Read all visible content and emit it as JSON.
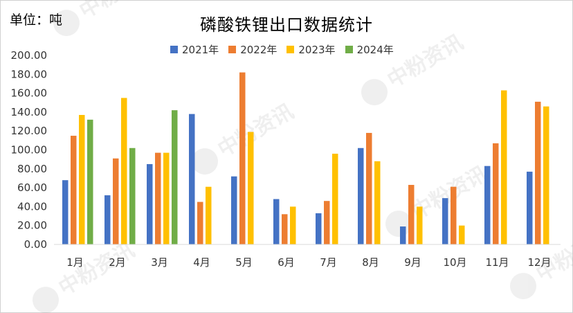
{
  "unit_label": "单位：吨",
  "watermark": "中粉资讯",
  "chart_data": {
    "type": "bar",
    "title": "磷酸铁锂出口数据统计",
    "categories": [
      "1月",
      "2月",
      "3月",
      "4月",
      "5月",
      "6月",
      "7月",
      "8月",
      "9月",
      "10月",
      "11月",
      "12月"
    ],
    "ylim": [
      0,
      200
    ],
    "yticks": [
      "0.00",
      "20.00",
      "40.00",
      "60.00",
      "80.00",
      "100.00",
      "120.00",
      "140.00",
      "160.00",
      "180.00",
      "200.00"
    ],
    "legend_position": "top",
    "grid": false,
    "series": [
      {
        "name": "2021年",
        "color": "#4472c4",
        "values": [
          68,
          52,
          85,
          138,
          72,
          48,
          33,
          102,
          19,
          49,
          83,
          77
        ]
      },
      {
        "name": "2022年",
        "color": "#ed7d31",
        "values": [
          115,
          91,
          97,
          45,
          182,
          32,
          46,
          118,
          63,
          61,
          107,
          151
        ]
      },
      {
        "name": "2023年",
        "color": "#ffc000",
        "values": [
          137,
          155,
          97,
          61,
          119,
          40,
          96,
          88,
          40,
          20,
          163,
          146
        ]
      },
      {
        "name": "2024年",
        "color": "#70ad47",
        "values": [
          132,
          102,
          142,
          null,
          null,
          null,
          null,
          null,
          null,
          null,
          null,
          null
        ]
      }
    ]
  }
}
